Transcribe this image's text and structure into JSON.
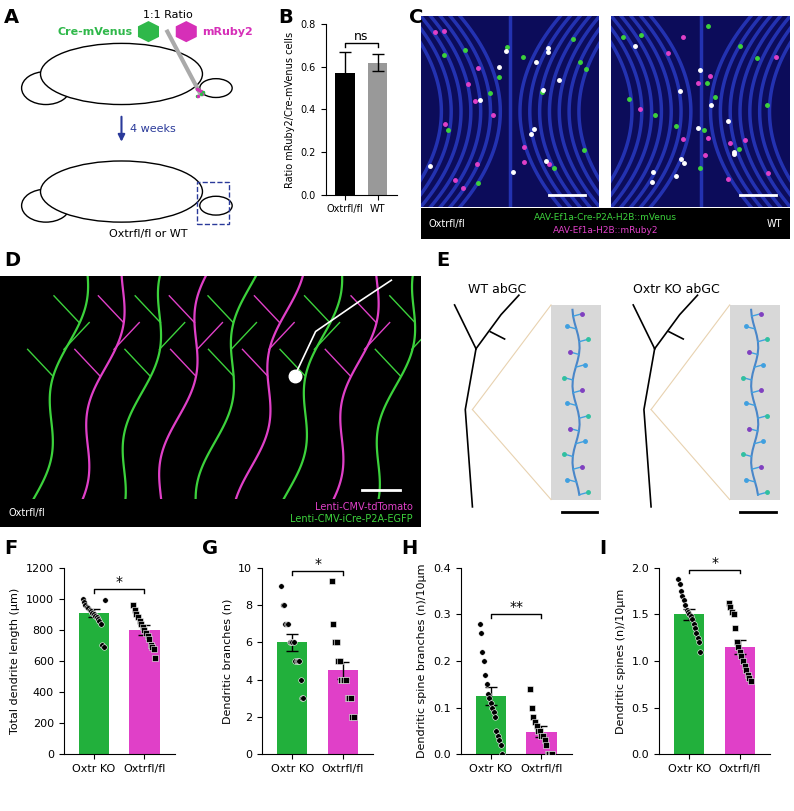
{
  "panel_labels": [
    "A",
    "B",
    "C",
    "D",
    "E",
    "F",
    "G",
    "H",
    "I"
  ],
  "panel_a": {
    "ratio_label": "1:1 Ratio",
    "left_virus": {
      "text": "Cre-mVenus",
      "color": "#2fb84a"
    },
    "right_virus": {
      "text": "mRuby2",
      "color": "#d62fb8"
    },
    "time": "4 weeks",
    "genotype": "Oxtrfl/fl or WT"
  },
  "panel_c": {
    "images": [
      "Oxtrfl/fl",
      "WT"
    ],
    "viruses": [
      {
        "text": "AAV-Ef1a-Cre-P2A-H2B::mVenus",
        "color": "#3cd23c"
      },
      {
        "text": "AAV-Ef1a-H2B::mRuby2",
        "color": "#e040c8"
      }
    ]
  },
  "panel_d": {
    "genotype": "Oxtrfl/fl",
    "viruses": [
      {
        "text": "Lenti-CMV-tdTomato",
        "color": "#e040c8"
      },
      {
        "text": "Lenti-CMV-iCre-P2A-EGFP",
        "color": "#3cd23c"
      }
    ]
  },
  "panel_e": {
    "cells": [
      "WT abGC",
      "Oxtr KO abGC"
    ]
  },
  "chart_data": [
    {
      "type": "bar",
      "ylabel": "Ratio mRuby2/Cre-mVenus cells",
      "categories": [
        "Oxtrfl/fl",
        "WT"
      ],
      "values": [
        0.57,
        0.62
      ],
      "errors": [
        0.1,
        0.04
      ],
      "colors": [
        "#000000",
        "#999999"
      ],
      "ylim": [
        0,
        0.8
      ],
      "yticks": [
        {
          "value": 0,
          "label": "0.0"
        },
        0.2,
        0.4,
        0.6,
        0.8
      ],
      "significance": "ns"
    },
    {
      "type": "bar",
      "ylabel": "Total dendrite length (µm)",
      "categories": [
        "Oxtr KO",
        "Oxtrfl/fl"
      ],
      "values": [
        910,
        800
      ],
      "errors": [
        25,
        30
      ],
      "colors": [
        "#22b03c",
        "#e040c8"
      ],
      "ylim": [
        0,
        1200
      ],
      "yticks": [
        0,
        200,
        400,
        600,
        800,
        1000,
        1200
      ],
      "points": [
        [
          1000,
          980,
          960,
          950,
          940,
          930,
          920,
          910,
          900,
          890,
          880,
          870,
          860,
          840,
          700,
          690,
          990
        ],
        [
          960,
          930,
          900,
          880,
          860,
          840,
          820,
          800,
          780,
          760,
          740,
          700,
          690,
          680,
          620
        ]
      ],
      "significance": "*"
    },
    {
      "type": "bar",
      "ylabel": "Dendritic branches (n)",
      "categories": [
        "Oxtr KO",
        "Oxtrfl/fl"
      ],
      "values": [
        6.0,
        4.5
      ],
      "errors": [
        0.45,
        0.45
      ],
      "colors": [
        "#22b03c",
        "#e040c8"
      ],
      "ylim": [
        0,
        10
      ],
      "yticks": [
        0,
        2,
        4,
        6,
        8,
        10
      ],
      "points": [
        [
          9,
          8,
          8,
          7,
          7,
          7,
          6,
          6,
          6,
          6,
          5,
          5,
          5,
          5,
          4,
          3,
          3
        ],
        [
          9.3,
          7,
          6,
          6,
          5,
          5,
          4,
          4,
          4,
          4,
          3,
          3,
          3,
          2,
          2
        ]
      ],
      "significance": "*"
    },
    {
      "type": "bar",
      "ylabel": "Dendritic spine branches (n)/10µm",
      "categories": [
        "Oxtr KO",
        "Oxtrfl/fl"
      ],
      "values": [
        0.125,
        0.048
      ],
      "errors": [
        0.02,
        0.012
      ],
      "colors": [
        "#22b03c",
        "#e040c8"
      ],
      "ylim": [
        0,
        0.4
      ],
      "yticks": [
        {
          "value": 0,
          "label": "0.0"
        },
        0.1,
        0.2,
        0.3,
        0.4
      ],
      "points": [
        [
          0.28,
          0.26,
          0.22,
          0.2,
          0.17,
          0.15,
          0.13,
          0.12,
          0.11,
          0.1,
          0.09,
          0.08,
          0.05,
          0.04,
          0.03,
          0.02,
          0.0
        ],
        [
          0.14,
          0.1,
          0.08,
          0.07,
          0.06,
          0.05,
          0.05,
          0.04,
          0.04,
          0.03,
          0.02,
          0.0,
          0.0,
          0.0,
          0.0
        ]
      ],
      "significance": "**"
    },
    {
      "type": "bar",
      "ylabel": "Dendritic spines (n)/10µm",
      "categories": [
        "Oxtr KO",
        "Oxtrfl/fl"
      ],
      "values": [
        1.5,
        1.15
      ],
      "errors": [
        0.06,
        0.07
      ],
      "colors": [
        "#22b03c",
        "#e040c8"
      ],
      "ylim": [
        0,
        2.0
      ],
      "yticks": [
        {
          "value": 0,
          "label": "0.0"
        },
        0.5,
        {
          "value": 1,
          "label": "1.0"
        },
        1.5,
        {
          "value": 2,
          "label": "2.0"
        }
      ],
      "points": [
        [
          1.88,
          1.82,
          1.75,
          1.7,
          1.65,
          1.6,
          1.55,
          1.52,
          1.5,
          1.48,
          1.45,
          1.4,
          1.35,
          1.3,
          1.25,
          1.2,
          1.1
        ],
        [
          1.62,
          1.58,
          1.52,
          1.5,
          1.35,
          1.2,
          1.15,
          1.1,
          1.05,
          1.0,
          0.95,
          0.9,
          0.85,
          0.82,
          0.78
        ]
      ],
      "significance": "*"
    }
  ]
}
